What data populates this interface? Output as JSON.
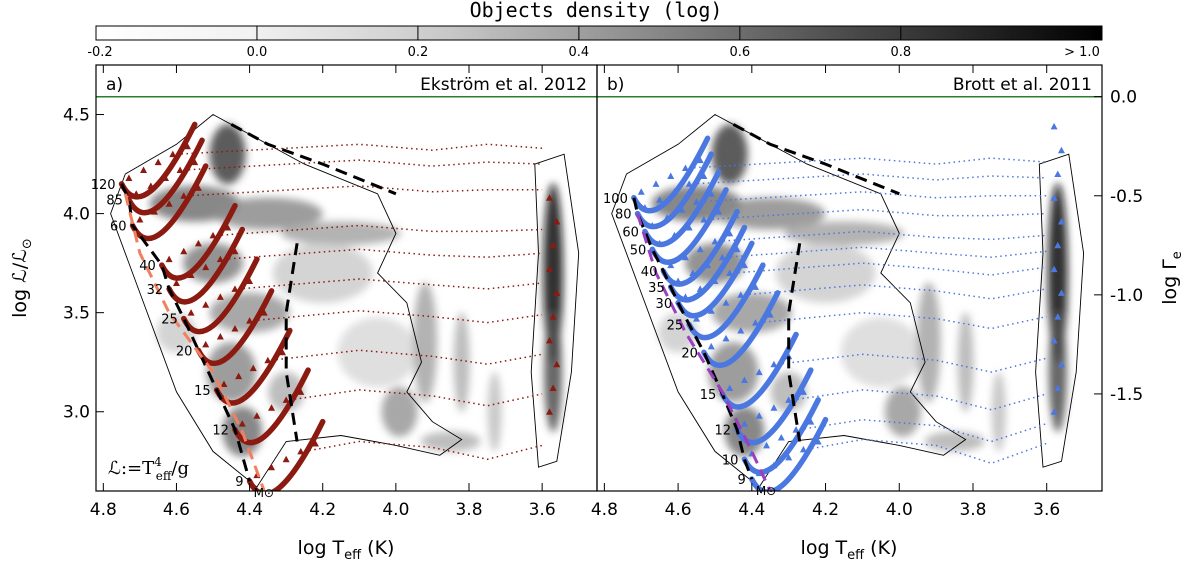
{
  "colorbar": {
    "title": "Objects density (log)",
    "ticks": [
      "-0.2",
      "0.0",
      "0.2",
      "0.4",
      "0.6",
      "0.8",
      "> 1.0"
    ],
    "min": -0.2,
    "max": 1.05,
    "colormap": "white-to-black"
  },
  "colors": {
    "ekstrom_tracks": "#8b1a10",
    "ekstrom_zams": "#f08060",
    "brott_tracks": "#4a78e0",
    "brott_zams": "#9b3fc0",
    "eddington_line": "#2e7d2e",
    "boundary": "#000000"
  },
  "axes": {
    "xlabel": "log T",
    "xlabel_sub": "eff",
    "xlabel_unit": " (K)",
    "ylabel": "log ℒ/ℒ",
    "ylabel_sub": "⊙",
    "y2label": "log Γ",
    "y2label_sub": "e",
    "xticks": [
      "4.8",
      "4.6",
      "4.4",
      "4.2",
      "4.0",
      "3.8",
      "3.6"
    ],
    "yticks": [
      "3.0",
      "3.5",
      "4.0",
      "4.5"
    ],
    "y2ticks": [
      "0.0",
      "-0.5",
      "-1.0",
      "-1.5"
    ]
  },
  "chart_data": [
    {
      "type": "line",
      "panel": "a)",
      "title": "Ekström et al. 2012",
      "xlim": [
        4.82,
        3.45
      ],
      "ylim": [
        2.6,
        4.75
      ],
      "y2lim": [
        -1.99,
        0.16
      ],
      "x_reversed": true,
      "eddington_limit_logL": 4.59,
      "masses": [
        "120",
        "85",
        "60",
        "40",
        "32",
        "25",
        "20",
        "15",
        "12",
        "9"
      ],
      "mass_unit": "M⊙",
      "formula": "ℒ:=T",
      "formula_sup": "4",
      "formula_sub": "eff",
      "formula_end": "/g",
      "tracks": [
        {
          "mass": "120",
          "logT_start": 4.75,
          "logL": 4.15
        },
        {
          "mass": "85",
          "logT_start": 4.73,
          "logL": 4.07
        },
        {
          "mass": "60",
          "logT_start": 4.72,
          "logL": 3.94
        },
        {
          "mass": "40",
          "logT_start": 4.64,
          "logL": 3.74
        },
        {
          "mass": "32",
          "logT_start": 4.62,
          "logL": 3.62
        },
        {
          "mass": "25",
          "logT_start": 4.58,
          "logL": 3.47
        },
        {
          "mass": "20",
          "logT_start": 4.54,
          "logL": 3.31
        },
        {
          "mass": "15",
          "logT_start": 4.49,
          "logL": 3.11
        },
        {
          "mass": "12",
          "logT_start": 4.44,
          "logL": 2.91
        },
        {
          "mass": "9",
          "logT_start": 4.4,
          "logL": 2.65
        }
      ]
    },
    {
      "type": "line",
      "panel": "b)",
      "title": "Brott et al. 2011",
      "xlim": [
        4.82,
        3.45
      ],
      "ylim": [
        2.6,
        4.75
      ],
      "y2lim": [
        -1.99,
        0.16
      ],
      "x_reversed": true,
      "eddington_limit_logL": 4.59,
      "masses": [
        "100",
        "80",
        "60",
        "50",
        "40",
        "35",
        "30",
        "25",
        "20",
        "15",
        "12",
        "10",
        "9"
      ],
      "mass_unit": "M⊙",
      "tracks": [
        {
          "mass": "100",
          "logT_start": 4.72,
          "logL": 4.08
        },
        {
          "mass": "80",
          "logT_start": 4.71,
          "logL": 4.0
        },
        {
          "mass": "60",
          "logT_start": 4.69,
          "logL": 3.91
        },
        {
          "mass": "50",
          "logT_start": 4.67,
          "logL": 3.82
        },
        {
          "mass": "40",
          "logT_start": 4.64,
          "logL": 3.71
        },
        {
          "mass": "35",
          "logT_start": 4.62,
          "logL": 3.63
        },
        {
          "mass": "30",
          "logT_start": 4.6,
          "logL": 3.55
        },
        {
          "mass": "25",
          "logT_start": 4.57,
          "logL": 3.44
        },
        {
          "mass": "20",
          "logT_start": 4.53,
          "logL": 3.3
        },
        {
          "mass": "15",
          "logT_start": 4.48,
          "logL": 3.09
        },
        {
          "mass": "12",
          "logT_start": 4.44,
          "logL": 2.91
        },
        {
          "mass": "10",
          "logT_start": 4.42,
          "logL": 2.76
        },
        {
          "mass": "9",
          "logT_start": 4.4,
          "logL": 2.66
        }
      ]
    }
  ]
}
